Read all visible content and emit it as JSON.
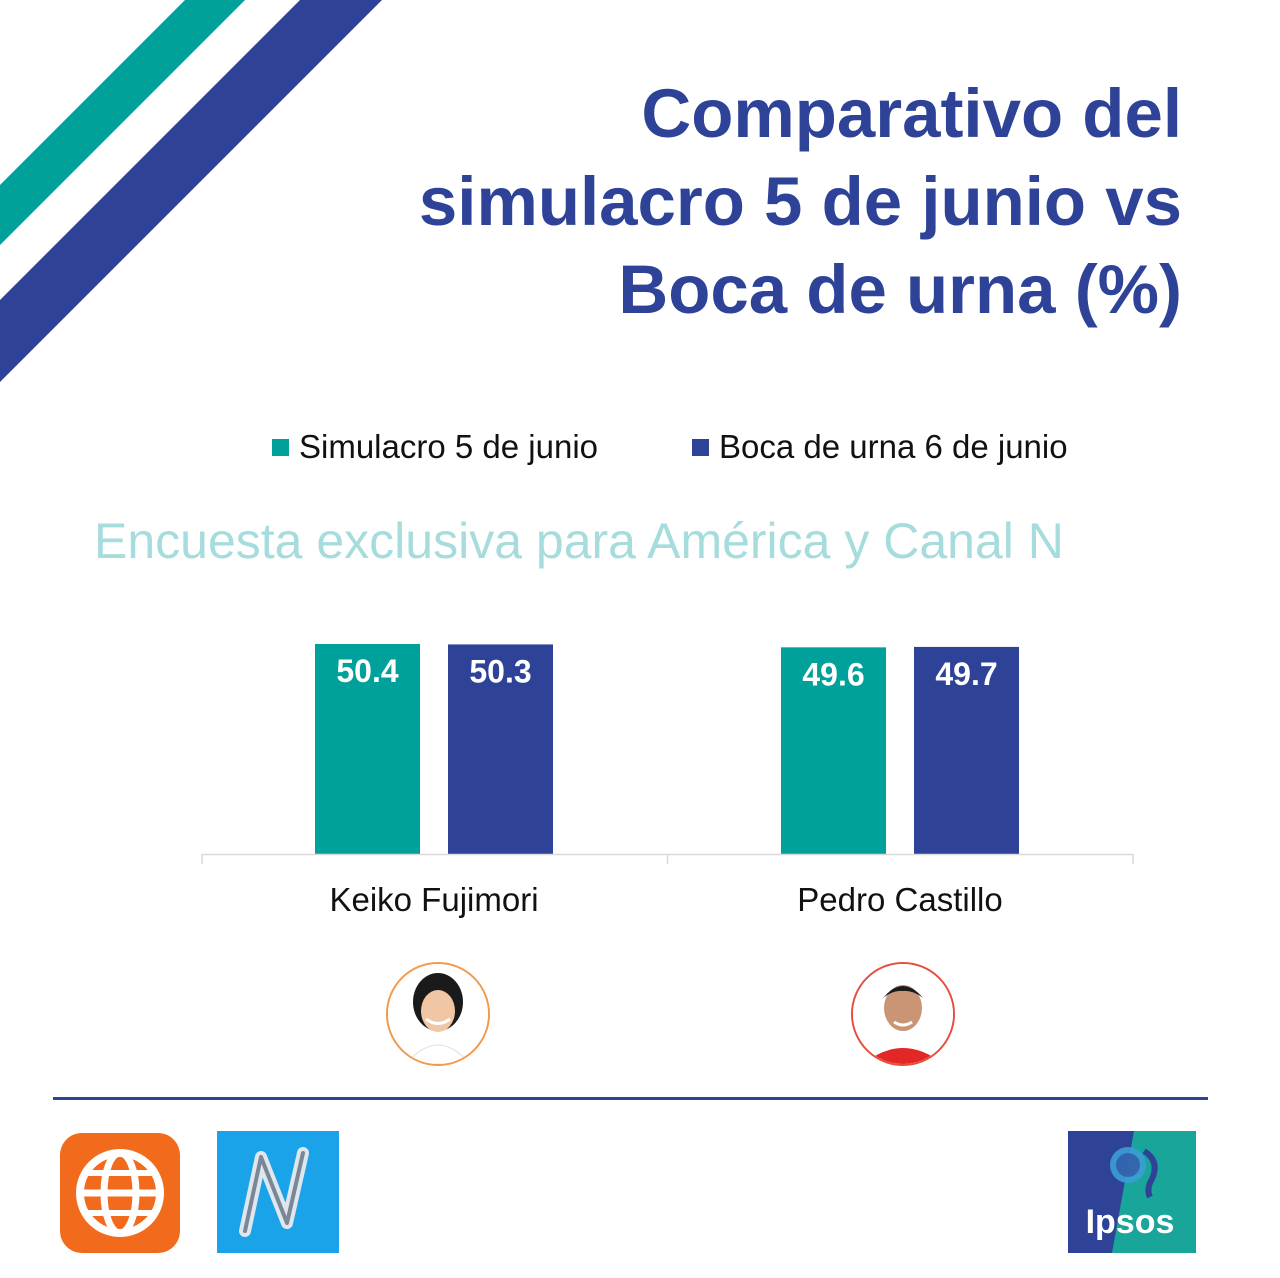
{
  "title_lines": [
    "Comparativo del",
    "simulacro 5 de junio vs",
    "Boca de urna (%)"
  ],
  "subtitle": "Encuesta exclusiva para América y Canal N",
  "colors": {
    "teal": "#00a19a",
    "navy": "#2e4398",
    "subtitle": "#a7dcdc",
    "america_orange": "#f26a1b",
    "canal_n_blue": "#1aa3e8",
    "ipsos_blue": "#2e4398",
    "ipsos_teal": "#1aa59b"
  },
  "legend": [
    {
      "label": "Simulacro 5 de junio",
      "color": "#00a19a"
    },
    {
      "label": "Boca de urna 6 de junio",
      "color": "#2e4398"
    }
  ],
  "chart_data": {
    "type": "bar",
    "categories": [
      "Keiko Fujimori",
      "Pedro Castillo"
    ],
    "series": [
      {
        "name": "Simulacro 5 de junio",
        "values": [
          50.4,
          49.6
        ]
      },
      {
        "name": "Boca de urna 6 de junio",
        "values": [
          50.3,
          49.7
        ]
      }
    ],
    "title": "Comparativo del simulacro 5 de junio vs Boca de urna (%)",
    "xlabel": "",
    "ylabel": "",
    "ylim": [
      0,
      50.4
    ],
    "grid": false,
    "legend_position": "top",
    "data_labels": true
  },
  "candidates": [
    {
      "name": "Keiko Fujimori",
      "photo_icon": "candidate-portrait-icon",
      "ring_color": "#f2994a"
    },
    {
      "name": "Pedro Castillo",
      "photo_icon": "candidate-portrait-icon",
      "ring_color": "#e74c3c"
    }
  ],
  "logos": {
    "america": "globe-icon",
    "canal_n": "n-letter-icon",
    "ipsos": "Ipsos"
  }
}
